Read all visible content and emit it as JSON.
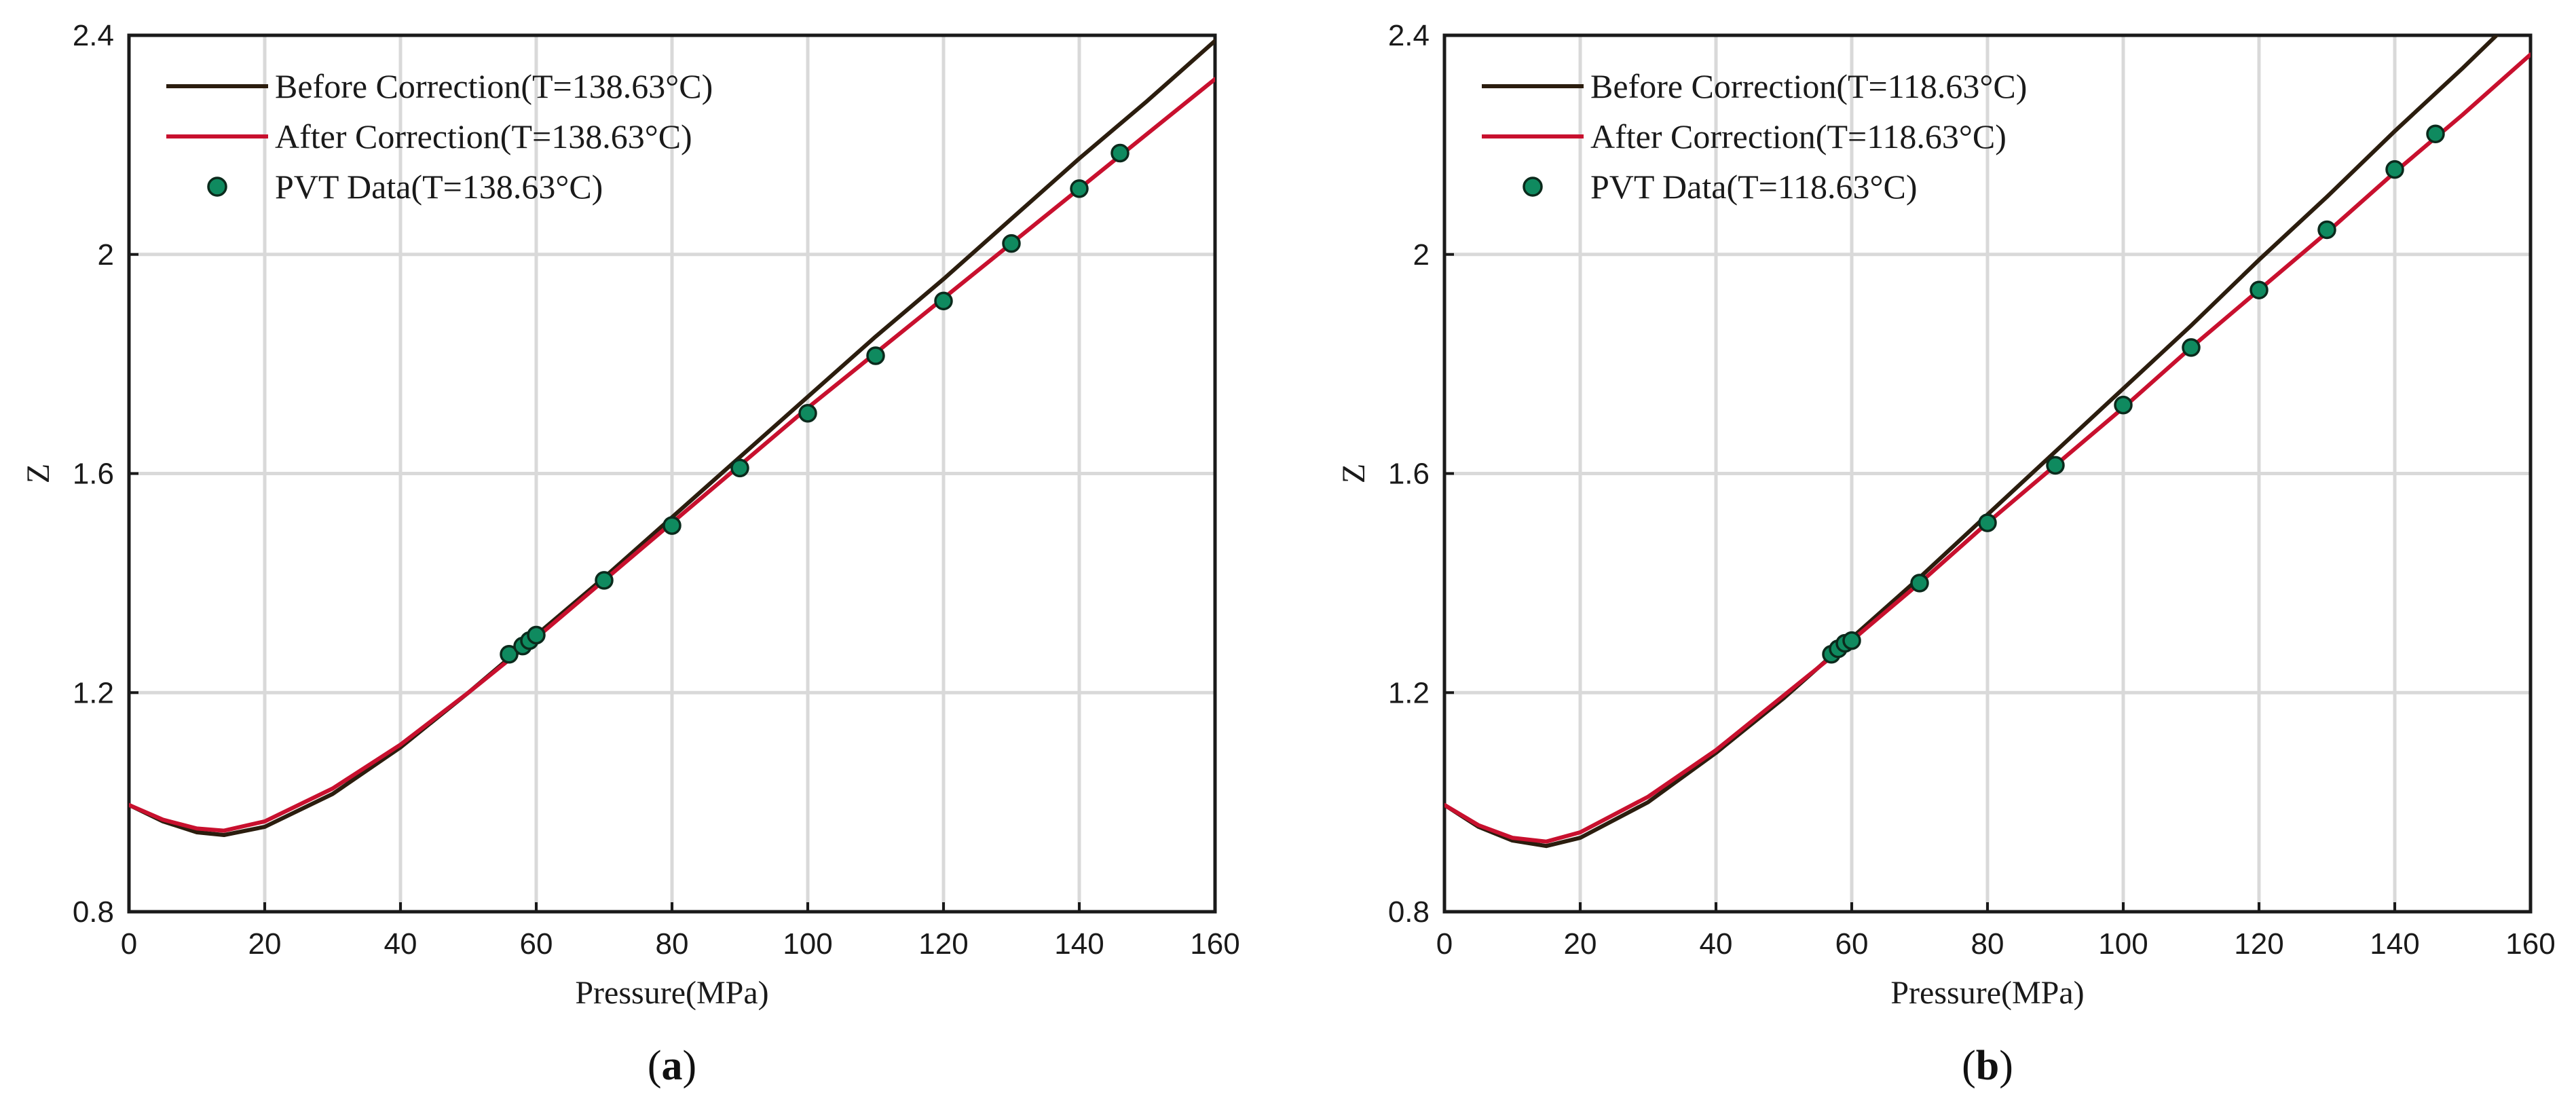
{
  "chart_data": [
    {
      "type": "line",
      "xlabel": "Pressure(MPa)",
      "ylabel": "Z",
      "xlim": [
        0,
        160
      ],
      "ylim": [
        0.8,
        2.4
      ],
      "xticks": [
        "0",
        "20",
        "40",
        "60",
        "80",
        "100",
        "120",
        "140",
        "160"
      ],
      "yticks": [
        "0.8",
        "1.2",
        "1.6",
        "2",
        "2.4"
      ],
      "grid": true,
      "legend_placement": "top-left",
      "panel_label": {
        "open": "(",
        "letter": "a",
        "close": ")"
      },
      "series": [
        {
          "name": "Before Correction(T=138.63°C)",
          "kind": "line",
          "color": "#2b1d0e",
          "x": [
            0,
            5,
            10,
            14,
            20,
            30,
            40,
            50,
            60,
            70,
            80,
            90,
            100,
            110,
            120,
            130,
            140,
            150,
            160
          ],
          "y": [
            0.995,
            0.965,
            0.945,
            0.94,
            0.955,
            1.015,
            1.1,
            1.2,
            1.305,
            1.41,
            1.52,
            1.63,
            1.74,
            1.85,
            1.955,
            2.065,
            2.175,
            2.28,
            2.39
          ]
        },
        {
          "name": "After Correction(T=138.63°C)",
          "kind": "line",
          "color": "#c8102e",
          "x": [
            0,
            5,
            10,
            14,
            20,
            30,
            40,
            50,
            60,
            70,
            80,
            90,
            100,
            110,
            120,
            130,
            140,
            150,
            160
          ],
          "y": [
            0.995,
            0.968,
            0.952,
            0.948,
            0.965,
            1.025,
            1.105,
            1.2,
            1.3,
            1.405,
            1.51,
            1.615,
            1.72,
            1.82,
            1.92,
            2.02,
            2.12,
            2.22,
            2.32
          ]
        },
        {
          "name": "PVT Data(T=138.63°C)",
          "kind": "scatter",
          "color": "#0f8a5f",
          "x": [
            56,
            58,
            59,
            60,
            70,
            80,
            90,
            100,
            110,
            120,
            130,
            140,
            146
          ],
          "y": [
            1.27,
            1.285,
            1.295,
            1.305,
            1.405,
            1.505,
            1.61,
            1.71,
            1.815,
            1.915,
            2.02,
            2.12,
            2.185
          ]
        }
      ]
    },
    {
      "type": "line",
      "xlabel": "Pressure(MPa)",
      "ylabel": "Z",
      "xlim": [
        0,
        160
      ],
      "ylim": [
        0.8,
        2.4
      ],
      "xticks": [
        "0",
        "20",
        "40",
        "60",
        "80",
        "100",
        "120",
        "140",
        "160"
      ],
      "yticks": [
        "0.8",
        "1.2",
        "1.6",
        "2",
        "2.4"
      ],
      "grid": true,
      "legend_placement": "top-left",
      "panel_label": {
        "open": "(",
        "letter": "b",
        "close": ")"
      },
      "series": [
        {
          "name": "Before Correction(T=118.63°C)",
          "kind": "line",
          "color": "#2b1d0e",
          "x": [
            0,
            5,
            10,
            15,
            20,
            30,
            40,
            50,
            60,
            70,
            80,
            90,
            100,
            110,
            120,
            130,
            140,
            150,
            155
          ],
          "y": [
            0.995,
            0.955,
            0.93,
            0.92,
            0.935,
            1.0,
            1.09,
            1.19,
            1.3,
            1.41,
            1.525,
            1.64,
            1.755,
            1.87,
            1.99,
            2.105,
            2.225,
            2.34,
            2.4
          ]
        },
        {
          "name": "After Correction(T=118.63°C)",
          "kind": "line",
          "color": "#c8102e",
          "x": [
            0,
            5,
            10,
            15,
            20,
            30,
            40,
            50,
            60,
            70,
            80,
            90,
            100,
            110,
            120,
            130,
            140,
            150,
            160
          ],
          "y": [
            0.995,
            0.958,
            0.935,
            0.928,
            0.945,
            1.01,
            1.095,
            1.195,
            1.295,
            1.4,
            1.51,
            1.615,
            1.72,
            1.83,
            1.935,
            2.04,
            2.15,
            2.255,
            2.365
          ]
        },
        {
          "name": "PVT Data(T=118.63°C)",
          "kind": "scatter",
          "color": "#0f8a5f",
          "x": [
            57,
            58,
            59,
            60,
            70,
            80,
            90,
            100,
            110,
            120,
            130,
            140,
            146
          ],
          "y": [
            1.27,
            1.28,
            1.29,
            1.295,
            1.4,
            1.51,
            1.615,
            1.725,
            1.83,
            1.935,
            2.045,
            2.155,
            2.22
          ]
        }
      ]
    }
  ]
}
